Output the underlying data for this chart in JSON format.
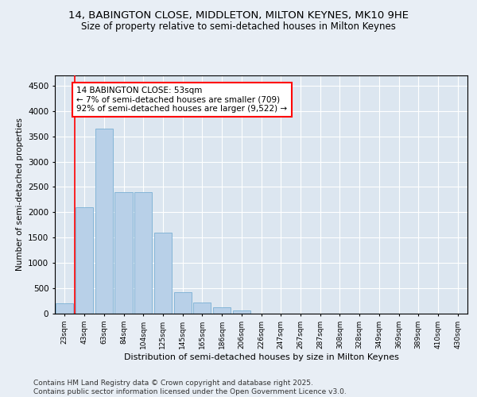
{
  "title1": "14, BABINGTON CLOSE, MIDDLETON, MILTON KEYNES, MK10 9HE",
  "title2": "Size of property relative to semi-detached houses in Milton Keynes",
  "xlabel": "Distribution of semi-detached houses by size in Milton Keynes",
  "ylabel": "Number of semi-detached properties",
  "categories": [
    "23sqm",
    "43sqm",
    "63sqm",
    "84sqm",
    "104sqm",
    "125sqm",
    "145sqm",
    "165sqm",
    "186sqm",
    "206sqm",
    "226sqm",
    "247sqm",
    "267sqm",
    "287sqm",
    "308sqm",
    "328sqm",
    "349sqm",
    "369sqm",
    "389sqm",
    "410sqm",
    "430sqm"
  ],
  "values": [
    200,
    2100,
    3650,
    2400,
    2400,
    1600,
    430,
    220,
    130,
    60,
    0,
    0,
    0,
    0,
    0,
    0,
    0,
    0,
    0,
    0,
    0
  ],
  "bar_color": "#b8d0e8",
  "bar_edge_color": "#7aafd4",
  "vline_x": 0.5,
  "vline_color": "red",
  "annotation_text": "14 BABINGTON CLOSE: 53sqm\n← 7% of semi-detached houses are smaller (709)\n92% of semi-detached houses are larger (9,522) →",
  "annotation_box_color": "white",
  "annotation_box_edge": "red",
  "ylim": [
    0,
    4700
  ],
  "yticks": [
    0,
    500,
    1000,
    1500,
    2000,
    2500,
    3000,
    3500,
    4000,
    4500
  ],
  "bg_color": "#e8eef5",
  "plot_bg_color": "#dce6f0",
  "footer": "Contains HM Land Registry data © Crown copyright and database right 2025.\nContains public sector information licensed under the Open Government Licence v3.0.",
  "title1_fontsize": 9.5,
  "title2_fontsize": 8.5,
  "xlabel_fontsize": 8,
  "ylabel_fontsize": 7.5,
  "footer_fontsize": 6.5,
  "annot_fontsize": 7.5
}
